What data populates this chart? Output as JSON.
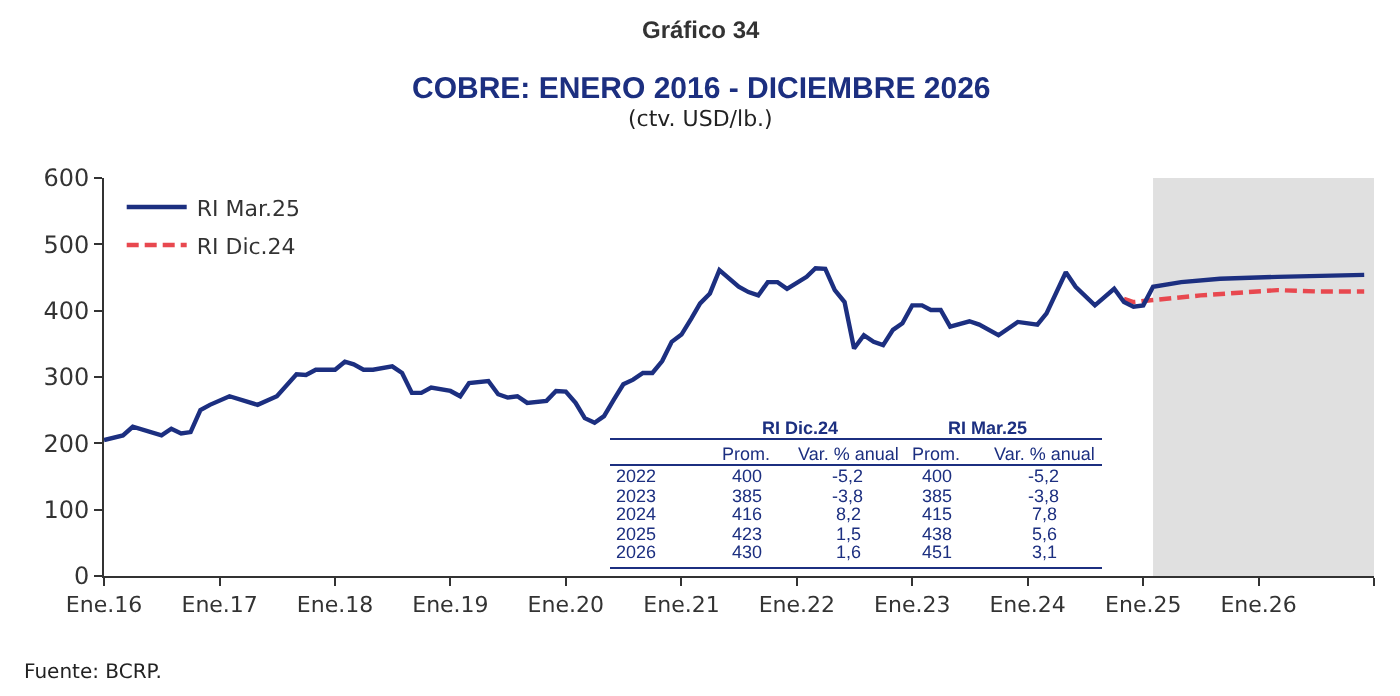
{
  "chart_data": {
    "type": "line",
    "title": "COBRE: ENERO 2016 - DICIEMBRE 2026",
    "subtitle": "(ctv. USD/lb.)",
    "annotations": [
      "Gráfico 34",
      "Fuente: BCRP.",
      "RI Dic.24",
      "RI Mar.25",
      "Prom.",
      "Var. % anual",
      "Prom.",
      "Var. % anual",
      "2022",
      "400",
      "-5,2",
      "400",
      "-5,2",
      "2023",
      "385",
      "-3,8",
      "385",
      "-3,8",
      "2024",
      "416",
      "8,2",
      "415",
      "7,8",
      "2025",
      "423",
      "1,5",
      "438",
      "5,6",
      "2026",
      "430",
      "1,6",
      "451",
      "3,1"
    ],
    "xlim": [
      "2016-01",
      "2027-01"
    ],
    "xticks": [
      {
        "value": "2016-01",
        "label": "Ene.16"
      },
      {
        "value": "2017-01",
        "label": "Ene.17"
      },
      {
        "value": "2018-01",
        "label": "Ene.18"
      },
      {
        "value": "2019-01",
        "label": "Ene.19"
      },
      {
        "value": "2020-01",
        "label": "Ene.20"
      },
      {
        "value": "2021-01",
        "label": "Ene.21"
      },
      {
        "value": "2022-01",
        "label": "Ene.22"
      },
      {
        "value": "2023-01",
        "label": "Ene.23"
      },
      {
        "value": "2024-01",
        "label": "Ene.24"
      },
      {
        "value": "2025-01",
        "label": "Ene.25"
      },
      {
        "value": "2026-01",
        "label": "Ene.26"
      },
      {
        "value": "2027-01",
        "label": null
      }
    ],
    "ylim": [
      0,
      600
    ],
    "yticks": [
      0,
      100,
      200,
      300,
      400,
      500,
      600
    ],
    "grid": false,
    "legend": "top left",
    "marker": "none",
    "bands": [
      {
        "axis": "x",
        "from": "2025-02",
        "to": "2027-01",
        "color": "#e0e0e0"
      }
    ],
    "series": [
      {
        "name": "RI Mar.25",
        "color": "#1c2f80",
        "line_style": "solid",
        "x": [
          "2016-01",
          "2016-03",
          "2016-04",
          "2016-07",
          "2016-08",
          "2016-09",
          "2016-10",
          "2016-11",
          "2016-12",
          "2017-02",
          "2017-05",
          "2017-07",
          "2017-09",
          "2017-10",
          "2017-11",
          "2018-01",
          "2018-02",
          "2018-03",
          "2018-04",
          "2018-05",
          "2018-07",
          "2018-08",
          "2018-09",
          "2018-10",
          "2018-11",
          "2019-01",
          "2019-02",
          "2019-03",
          "2019-05",
          "2019-06",
          "2019-07",
          "2019-08",
          "2019-09",
          "2019-11",
          "2019-12",
          "2020-01",
          "2020-02",
          "2020-03",
          "2020-04",
          "2020-05",
          "2020-06",
          "2020-07",
          "2020-08",
          "2020-09",
          "2020-10",
          "2020-11",
          "2020-12",
          "2021-01",
          "2021-02",
          "2021-03",
          "2021-04",
          "2021-05",
          "2021-07",
          "2021-08",
          "2021-09",
          "2021-10",
          "2021-11",
          "2021-12",
          "2022-02",
          "2022-03",
          "2022-04",
          "2022-05",
          "2022-06",
          "2022-07",
          "2022-08",
          "2022-09",
          "2022-10",
          "2022-11",
          "2022-12",
          "2023-01",
          "2023-02",
          "2023-03",
          "2023-04",
          "2023-05",
          "2023-07",
          "2023-08",
          "2023-10",
          "2023-12",
          "2024-02",
          "2024-03",
          "2024-05",
          "2024-06",
          "2024-08",
          "2024-10",
          "2024-11",
          "2024-12",
          "2025-01",
          "2025-02",
          "2025-05",
          "2025-09",
          "2026-03",
          "2026-12"
        ],
        "values": [
          205,
          212,
          225,
          212,
          222,
          215,
          217,
          250,
          258,
          271,
          258,
          271,
          304,
          303,
          311,
          311,
          323,
          319,
          311,
          311,
          316,
          306,
          276,
          276,
          284,
          279,
          271,
          291,
          294,
          274,
          269,
          271,
          261,
          264,
          279,
          278,
          261,
          238,
          231,
          241,
          266,
          289,
          296,
          306,
          306,
          324,
          353,
          364,
          388,
          411,
          426,
          461,
          436,
          428,
          423,
          443,
          443,
          433,
          451,
          464,
          463,
          431,
          413,
          343,
          363,
          353,
          348,
          371,
          381,
          408,
          408,
          401,
          401,
          376,
          384,
          379,
          363,
          383,
          379,
          396,
          458,
          436,
          408,
          433,
          413,
          406,
          408,
          436,
          443,
          448,
          451,
          454
        ]
      },
      {
        "name": "RI Dic.24",
        "color": "#e8484f",
        "line_style": "dashed",
        "x": [
          "2024-11",
          "2024-12",
          "2025-02",
          "2025-07",
          "2026-03",
          "2026-07",
          "2026-12"
        ],
        "values": [
          418,
          413,
          416,
          423,
          431,
          429,
          429
        ]
      }
    ]
  }
}
